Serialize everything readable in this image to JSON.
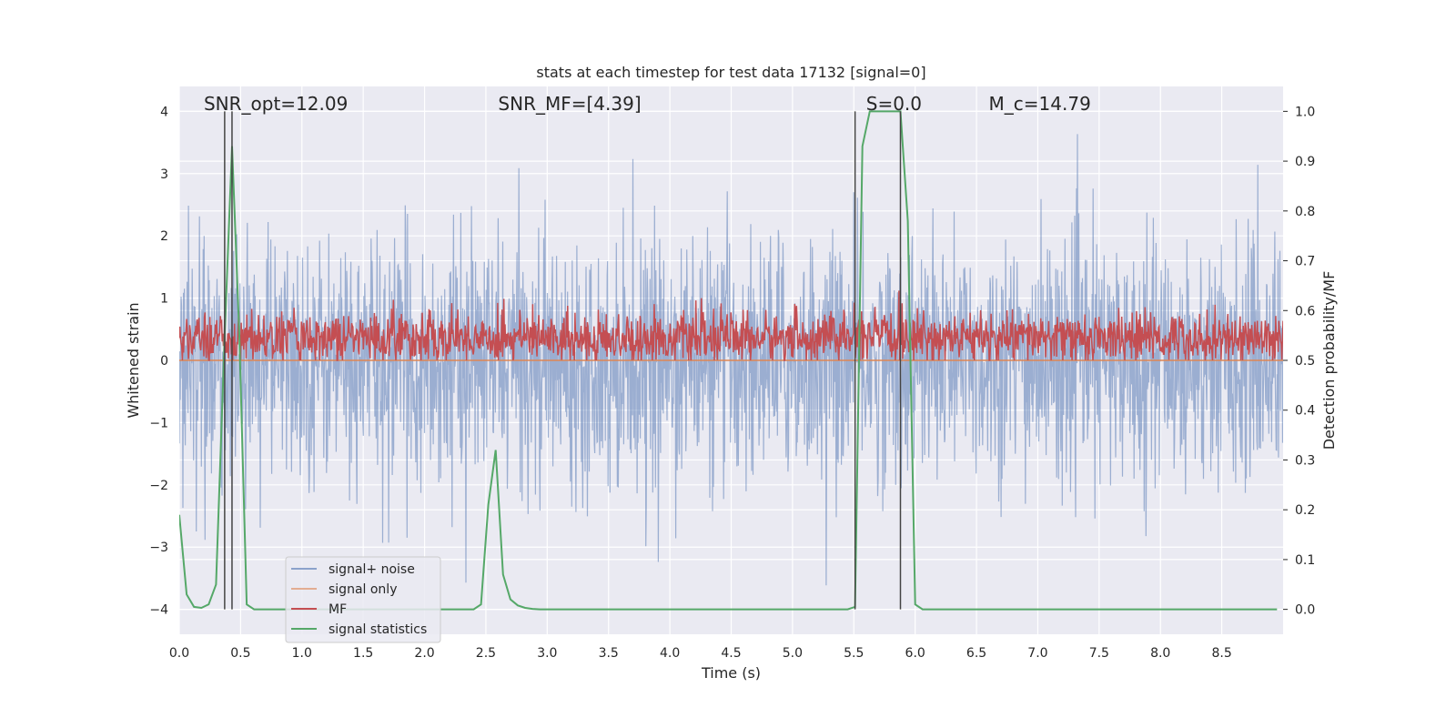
{
  "chart_data": {
    "type": "line",
    "title": "stats at each timestep for test data 17132 [signal=0]",
    "xlabel": "Time (s)",
    "ylabel": "Whitened strain",
    "ylabel_right": "Detection probability/MF",
    "xlim": [
      0,
      9.0
    ],
    "ylim": [
      -4.4,
      4.4
    ],
    "ylim_right": [
      -0.05,
      1.05
    ],
    "x_ticks": [
      0.0,
      0.5,
      1.0,
      1.5,
      2.0,
      2.5,
      3.0,
      3.5,
      4.0,
      4.5,
      5.0,
      5.5,
      6.0,
      6.5,
      7.0,
      7.5,
      8.0,
      8.5
    ],
    "x_tick_labels": [
      "0.0",
      "0.5",
      "1.0",
      "1.5",
      "2.0",
      "2.5",
      "3.0",
      "3.5",
      "4.0",
      "4.5",
      "5.0",
      "5.5",
      "6.0",
      "6.5",
      "7.0",
      "7.5",
      "8.0",
      "8.5"
    ],
    "y_ticks": [
      4,
      3,
      2,
      1,
      0,
      -1,
      -2,
      -3,
      -4
    ],
    "y_tick_labels": [
      "4",
      "3",
      "2",
      "1",
      "0",
      "−1",
      "−2",
      "−3",
      "−4"
    ],
    "y_right_ticks": [
      1.0,
      0.9,
      0.8,
      0.7,
      0.6,
      0.5,
      0.4,
      0.3,
      0.2,
      0.1,
      0.0
    ],
    "y_right_tick_labels": [
      "1.0",
      "0.9",
      "0.8",
      "0.7",
      "0.6",
      "0.5",
      "0.4",
      "0.3",
      "0.2",
      "0.1",
      "0.0"
    ],
    "grid": true,
    "legend_position": "lower-left",
    "annotations": [
      {
        "text": "SNR_opt=12.09",
        "x": 0.2
      },
      {
        "text": "SNR_MF=[4.39]",
        "x": 2.6
      },
      {
        "text": "S=0.0",
        "x": 5.6
      },
      {
        "text": "M_c=14.79",
        "x": 6.6
      }
    ],
    "vertical_lines_x": [
      0.37,
      0.43,
      5.51,
      5.88
    ],
    "series": [
      {
        "name": "signal+ noise",
        "color": "#4c72b0",
        "axis": "left",
        "description_values": "noise band roughly between -1.6 and 1.6 with spikes up to about ±3.8"
      },
      {
        "name": "signal only",
        "color": "#dd8452",
        "axis": "left",
        "x": [
          0.0,
          9.0
        ],
        "y": [
          0.0,
          0.0
        ]
      },
      {
        "name": "MF",
        "color": "#c44e52",
        "axis": "right",
        "description_values": "values fluctuating roughly between 0.5 and 0.64"
      },
      {
        "name": "signal statistics",
        "color": "#55a868",
        "axis": "right",
        "x": [
          0.0,
          0.06,
          0.12,
          0.18,
          0.24,
          0.3,
          0.37,
          0.43,
          0.49,
          0.55,
          0.61,
          0.67,
          2.4,
          2.46,
          2.52,
          2.58,
          2.64,
          2.7,
          2.76,
          2.82,
          2.88,
          2.94,
          3.0,
          5.45,
          5.51,
          5.57,
          5.63,
          5.69,
          5.75,
          5.81,
          5.88,
          5.94,
          6.0,
          6.06,
          8.95
        ],
        "y": [
          0.19,
          0.03,
          0.005,
          0.003,
          0.01,
          0.05,
          0.55,
          0.93,
          0.55,
          0.01,
          0.0,
          0.0,
          0.0,
          0.01,
          0.21,
          0.32,
          0.07,
          0.02,
          0.008,
          0.003,
          0.001,
          0.0,
          0.0,
          0.0,
          0.005,
          0.93,
          1.0,
          1.0,
          1.0,
          1.0,
          1.0,
          0.78,
          0.01,
          0.0,
          0.0
        ]
      }
    ]
  }
}
